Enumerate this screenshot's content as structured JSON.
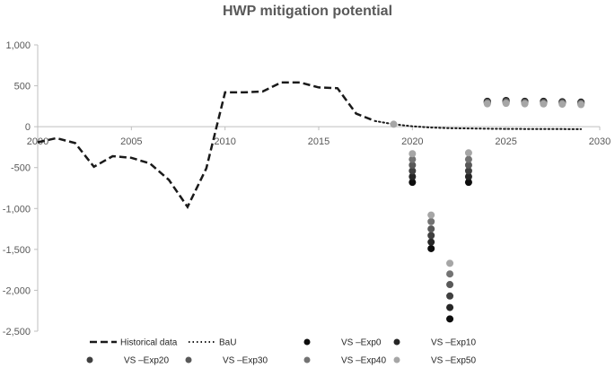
{
  "chart_data": {
    "type": "line",
    "title": "HWP mitigation potential",
    "xlabel": "",
    "ylabel": "",
    "xlim": [
      2000,
      2030
    ],
    "ylim": [
      -2500,
      1000
    ],
    "x_ticks": [
      2000,
      2005,
      2010,
      2015,
      2020,
      2025,
      2030
    ],
    "y_ticks": [
      1000,
      500,
      0,
      -500,
      -1000,
      -1500,
      -2000,
      -2500
    ],
    "x_tick_labels": [
      "2000",
      "2005",
      "2010",
      "2015",
      "2020",
      "2025",
      "2030"
    ],
    "y_tick_labels": [
      "1,000",
      "500",
      "0",
      "-500",
      "-1,000",
      "-1,500",
      "-2,000",
      "-2,500"
    ],
    "grid": false,
    "legend_position": "bottom",
    "series": [
      {
        "name": "Historical data",
        "style": "dashed",
        "color": "#1a1a1a",
        "points": [
          [
            2000,
            -190
          ],
          [
            2001,
            -140
          ],
          [
            2002,
            -200
          ],
          [
            2003,
            -490
          ],
          [
            2004,
            -360
          ],
          [
            2005,
            -380
          ],
          [
            2006,
            -450
          ],
          [
            2007,
            -650
          ],
          [
            2008,
            -980
          ],
          [
            2009,
            -510
          ],
          [
            2010,
            420
          ],
          [
            2011,
            420
          ],
          [
            2012,
            430
          ],
          [
            2013,
            540
          ],
          [
            2014,
            540
          ],
          [
            2015,
            480
          ],
          [
            2016,
            470
          ],
          [
            2017,
            160
          ],
          [
            2018,
            70
          ]
        ]
      },
      {
        "name": "BaU",
        "style": "dotted",
        "color": "#1a1a1a",
        "points": [
          [
            2018,
            70
          ],
          [
            2019,
            30
          ],
          [
            2020,
            5
          ],
          [
            2021,
            -10
          ],
          [
            2022,
            -18
          ],
          [
            2023,
            -22
          ],
          [
            2024,
            -25
          ],
          [
            2025,
            -27
          ],
          [
            2026,
            -28
          ],
          [
            2027,
            -29
          ],
          [
            2028,
            -29
          ],
          [
            2029,
            -30
          ]
        ]
      },
      {
        "name": "VS –Exp0",
        "style": "marker",
        "color": "#0d0d0d",
        "points": [
          [
            2020,
            -680
          ],
          [
            2021,
            -1490
          ],
          [
            2022,
            -2350
          ],
          [
            2023,
            -680
          ],
          [
            2024,
            310
          ],
          [
            2025,
            320
          ],
          [
            2026,
            310
          ],
          [
            2027,
            310
          ],
          [
            2028,
            305
          ],
          [
            2029,
            300
          ]
        ]
      },
      {
        "name": "VS –Exp10",
        "style": "marker",
        "color": "#262626",
        "points": [
          [
            2020,
            -610
          ],
          [
            2021,
            -1410
          ],
          [
            2022,
            -2210
          ],
          [
            2023,
            -610
          ],
          [
            2024,
            305
          ],
          [
            2025,
            315
          ],
          [
            2026,
            305
          ],
          [
            2027,
            305
          ],
          [
            2028,
            300
          ],
          [
            2029,
            295
          ]
        ]
      },
      {
        "name": "VS –Exp20",
        "style": "marker",
        "color": "#404040",
        "points": [
          [
            2020,
            -540
          ],
          [
            2021,
            -1330
          ],
          [
            2022,
            -2070
          ],
          [
            2023,
            -540
          ],
          [
            2024,
            300
          ],
          [
            2025,
            310
          ],
          [
            2026,
            300
          ],
          [
            2027,
            300
          ],
          [
            2028,
            295
          ],
          [
            2029,
            290
          ]
        ]
      },
      {
        "name": "VS –Exp30",
        "style": "marker",
        "color": "#595959",
        "points": [
          [
            2020,
            -470
          ],
          [
            2021,
            -1250
          ],
          [
            2022,
            -1930
          ],
          [
            2023,
            -470
          ],
          [
            2024,
            295
          ],
          [
            2025,
            300
          ],
          [
            2026,
            295
          ],
          [
            2027,
            290
          ],
          [
            2028,
            290
          ],
          [
            2029,
            285
          ]
        ]
      },
      {
        "name": "VS –Exp40",
        "style": "marker",
        "color": "#737373",
        "points": [
          [
            2020,
            -400
          ],
          [
            2021,
            -1160
          ],
          [
            2022,
            -1800
          ],
          [
            2023,
            -400
          ],
          [
            2024,
            290
          ],
          [
            2025,
            295
          ],
          [
            2026,
            290
          ],
          [
            2027,
            285
          ],
          [
            2028,
            285
          ],
          [
            2029,
            280
          ]
        ]
      },
      {
        "name": "VS –Exp50",
        "style": "marker",
        "color": "#a6a6a6",
        "points": [
          [
            2019,
            30
          ],
          [
            2020,
            -330
          ],
          [
            2021,
            -1080
          ],
          [
            2022,
            -1670
          ],
          [
            2023,
            -320
          ],
          [
            2024,
            280
          ],
          [
            2025,
            285
          ],
          [
            2026,
            280
          ],
          [
            2027,
            278
          ],
          [
            2028,
            275
          ],
          [
            2029,
            270
          ]
        ]
      }
    ]
  }
}
